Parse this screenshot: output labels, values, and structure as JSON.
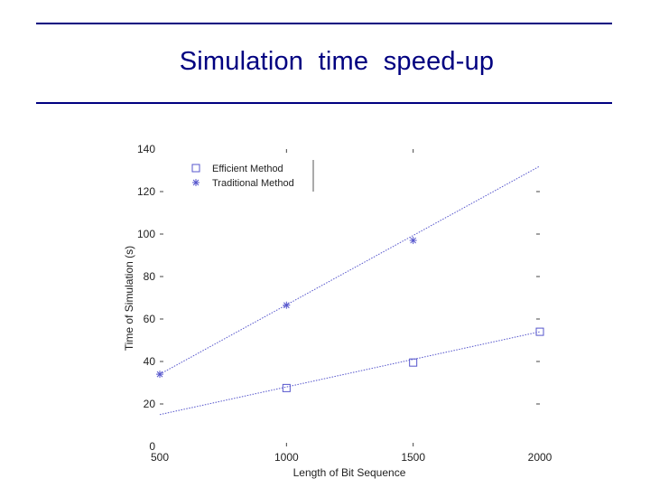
{
  "slide": {
    "title": "Simulation  time  speed-up"
  },
  "colors": {
    "accent": "#000080",
    "series": "#5555cc",
    "tick": "#444444"
  },
  "chart_data": {
    "type": "line",
    "title": "",
    "xlabel": "Length of Bit Sequence",
    "ylabel": "Time of Simulation (s)",
    "xlim": [
      500,
      2000
    ],
    "ylim": [
      0,
      140
    ],
    "xticks": [
      500,
      1000,
      1500,
      2000
    ],
    "yticks": [
      0,
      20,
      40,
      60,
      80,
      100,
      120,
      140
    ],
    "grid": false,
    "legend_position": "top-left",
    "series": [
      {
        "name": "Efficient Method",
        "marker": "square",
        "fit": [
          [
            500,
            15
          ],
          [
            2000,
            54
          ]
        ],
        "x": [
          1000,
          1500,
          2000
        ],
        "values": [
          27.5,
          39.5,
          54
        ]
      },
      {
        "name": "Traditional Method",
        "marker": "star",
        "fit": [
          [
            500,
            34
          ],
          [
            2000,
            132
          ]
        ],
        "x": [
          500,
          1000,
          1500
        ],
        "values": [
          34,
          66.5,
          97
        ]
      }
    ]
  }
}
